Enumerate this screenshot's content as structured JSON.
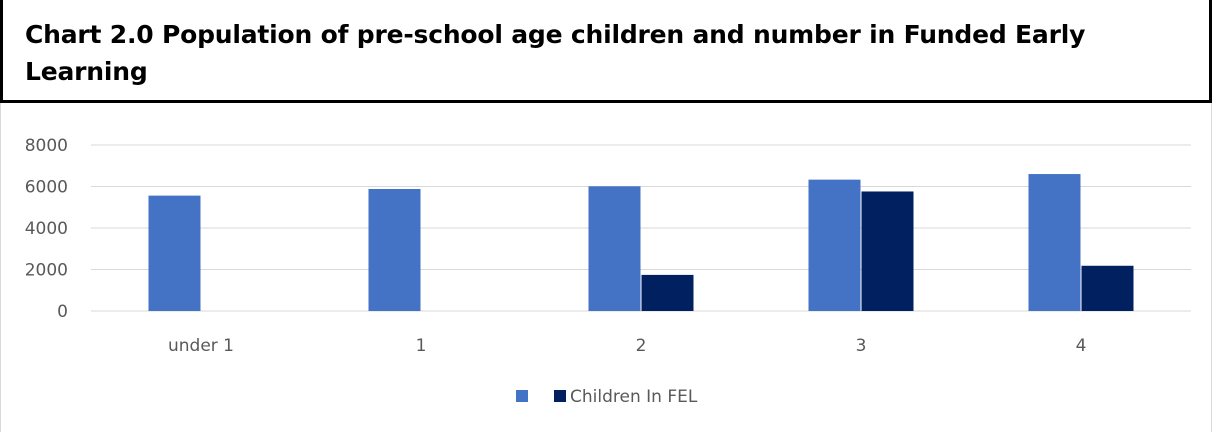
{
  "title": "Chart 2.0 Population of pre-school age children and number in Funded Early Learning",
  "colors": {
    "series1": "#4472c4",
    "series2": "#002060",
    "grid": "#d9d9d9",
    "axis_text": "#595959"
  },
  "chart_data": {
    "type": "bar",
    "categories": [
      "under 1",
      "1",
      "2",
      "3",
      "4"
    ],
    "series": [
      {
        "name": "",
        "values": [
          5560,
          5880,
          6010,
          6330,
          6600
        ]
      },
      {
        "name": "Children In FEL",
        "values": [
          0,
          0,
          1740,
          5760,
          2180
        ]
      }
    ],
    "yticks": [
      "0",
      "2000",
      "4000",
      "6000",
      "8000"
    ],
    "ylim": [
      0,
      8000
    ],
    "grid": true,
    "legend": "bottom"
  }
}
